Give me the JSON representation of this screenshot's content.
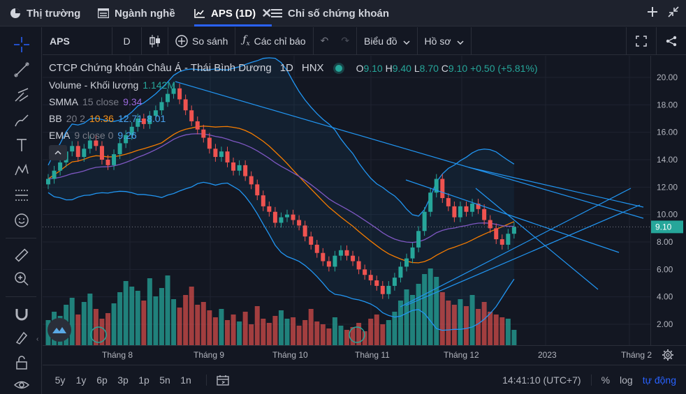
{
  "tabs": [
    {
      "label": "Thị trường",
      "icon": "pie-chart-icon"
    },
    {
      "label": "Ngành nghề",
      "icon": "table-icon"
    },
    {
      "label": "APS (1D)",
      "icon": "line-chart-icon",
      "active": true
    },
    {
      "label": "Chỉ số chứng khoán",
      "icon": "list-icon"
    }
  ],
  "toolbar": {
    "symbol": "APS",
    "interval": "D",
    "compare": "So sánh",
    "indicators": "Các chỉ báo",
    "chart_type": "Biểu đồ",
    "template": "Hồ sơ"
  },
  "legend": {
    "title": "CTCP Chứng khoán Châu Á - Thái Bình Dương",
    "interval": "1D",
    "exchange": "HNX",
    "o_label": "O",
    "o": "9.10",
    "h_label": "H",
    "h": "9.40",
    "l_label": "L",
    "l": "8.70",
    "c_label": "C",
    "c": "9.10",
    "change": "+0.50 (+5.81%)",
    "volume_label": "Volume - Khối lượng",
    "volume": "1.142M",
    "smma_label": "SMMA",
    "smma_params": "15 close",
    "smma_value": "9.34",
    "bb_label": "BB",
    "bb_params": "20 2",
    "bb_mid": "10.36",
    "bb_up": "12.71",
    "bb_low": "8.01",
    "ema_label": "EMA",
    "ema_params": "9 close 0",
    "ema_value": "9.26"
  },
  "price_axis": [
    "20.00",
    "18.00",
    "16.00",
    "14.00",
    "12.00",
    "10.00",
    "8.00",
    "6.00",
    "4.00",
    "2.00"
  ],
  "last_price": "9.10",
  "time_axis": [
    "Tháng 8",
    "Tháng 9",
    "Tháng 10",
    "Tháng 11",
    "Tháng 12",
    "2023",
    "Tháng 2"
  ],
  "bottom": {
    "ranges": [
      "5y",
      "1y",
      "6p",
      "3p",
      "1p",
      "5n",
      "1n"
    ],
    "time": "14:41:10 (UTC+7)",
    "percent": "%",
    "log": "log",
    "auto": "tự động"
  },
  "colors": {
    "up": "#26a69a",
    "down": "#ef5350",
    "accent": "#2962ff",
    "bb": "#2196f3",
    "ema": "#f57c00",
    "smma": "#7e57c2"
  },
  "chart_data": {
    "type": "candlestick",
    "title": "CTCP Chứng khoán Châu Á - Thái Bình Dương",
    "ylim": [
      1,
      21
    ],
    "yticks": [
      2,
      4,
      6,
      8,
      10,
      12,
      14,
      16,
      18,
      20
    ],
    "categories": [
      "Tháng 8",
      "Tháng 9",
      "Tháng 10",
      "Tháng 11",
      "Tháng 12",
      "2023"
    ],
    "close": [
      12.6,
      13.2,
      13.8,
      14.6,
      15.0,
      14.2,
      14.8,
      15.4,
      15.0,
      14.0,
      13.6,
      14.4,
      15.2,
      15.8,
      16.4,
      17.0,
      16.6,
      17.2,
      17.6,
      18.2,
      18.8,
      19.2,
      18.4,
      17.6,
      16.8,
      16.2,
      15.6,
      14.8,
      14.2,
      14.6,
      13.8,
      13.2,
      13.6,
      12.8,
      12.2,
      11.4,
      10.6,
      10.2,
      9.4,
      9.8,
      10.0,
      9.6,
      9.2,
      8.4,
      7.8,
      7.2,
      6.6,
      6.2,
      7.0,
      7.4,
      7.0,
      6.6,
      6.0,
      5.6,
      5.2,
      4.8,
      4.2,
      4.8,
      5.4,
      6.2,
      6.8,
      7.6,
      8.8,
      10.2,
      11.6,
      12.6,
      11.2,
      10.6,
      9.8,
      10.6,
      10.2,
      10.8,
      10.4,
      9.6,
      9.0,
      8.2,
      7.8,
      8.6,
      9.1
    ],
    "volume": [
      1.8,
      2.4,
      2.1,
      2.9,
      3.4,
      2.2,
      3.1,
      3.7,
      2.6,
      1.9,
      2.3,
      3.0,
      3.8,
      4.6,
      4.2,
      3.9,
      3.2,
      4.8,
      3.5,
      4.1,
      5.0,
      3.3,
      2.7,
      3.6,
      4.2,
      2.9,
      3.1,
      2.5,
      2.0,
      2.6,
      1.8,
      2.2,
      1.7,
      2.4,
      1.5,
      2.8,
      1.9,
      1.6,
      2.1,
      2.5,
      1.9,
      2.0,
      1.4,
      1.8,
      2.6,
      1.7,
      1.5,
      1.2,
      2.0,
      1.4,
      1.1,
      1.3,
      1.6,
      1.0,
      1.9,
      2.2,
      1.5,
      1.8,
      2.4,
      3.2,
      4.0,
      3.6,
      4.4,
      5.1,
      5.5,
      4.9,
      3.8,
      3.2,
      2.9,
      3.3,
      2.8,
      3.6,
      2.6,
      3.1,
      2.4,
      2.2,
      2.0,
      1.9,
      1.1
    ]
  }
}
